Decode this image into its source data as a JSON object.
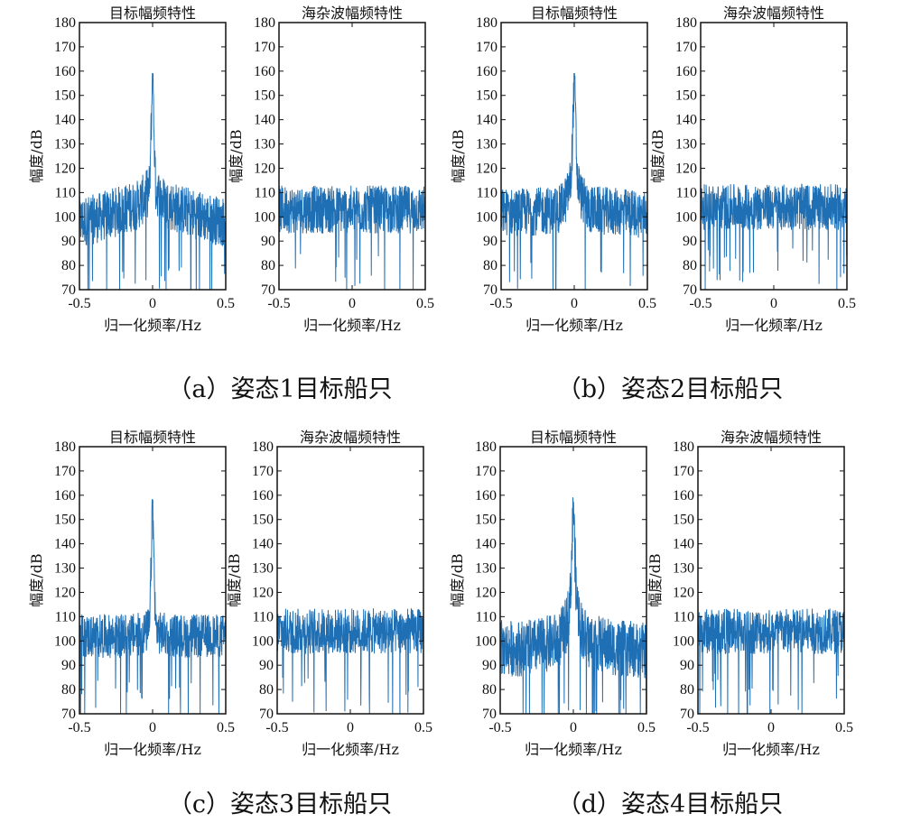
{
  "figure": {
    "captions": [
      "（a）姿态1目标船只",
      "（b）姿态2目标船只",
      "（c）姿态3目标船只",
      "（d）姿态4目标船只"
    ],
    "line_color": "#1f6fb4"
  },
  "chart_data": [
    {
      "type": "line",
      "group": "a",
      "title": "目标幅频特性",
      "xlabel": "归一化频率/Hz",
      "ylabel": "幅度/dB",
      "xlim": [
        -0.5,
        0.5
      ],
      "ylim": [
        70,
        180
      ],
      "xticks": [
        "-0.5",
        "0",
        "0.5"
      ],
      "yticks": [
        "70",
        "80",
        "90",
        "100",
        "110",
        "120",
        "130",
        "140",
        "150",
        "160",
        "170",
        "180"
      ],
      "series": [
        {
          "x": [
            -0.5,
            -0.4,
            -0.3,
            -0.2,
            -0.1,
            -0.05,
            -0.02,
            0,
            0.02,
            0.05,
            0.1,
            0.2,
            0.3,
            0.4,
            0.5
          ],
          "y": [
            98,
            99,
            101,
            103,
            105,
            108,
            112,
            159,
            112,
            108,
            105,
            103,
            101,
            99,
            98
          ],
          "noise_band": [
            85,
            108
          ]
        }
      ]
    },
    {
      "type": "line",
      "group": "a",
      "title": "海杂波幅频特性",
      "xlabel": "归一化频率/Hz",
      "ylabel": "幅度/dB",
      "xlim": [
        -0.5,
        0.5
      ],
      "ylim": [
        70,
        180
      ],
      "xticks": [
        "-0.5",
        "0",
        "0.5"
      ],
      "yticks": [
        "70",
        "80",
        "90",
        "100",
        "110",
        "120",
        "130",
        "140",
        "150",
        "160",
        "170",
        "180"
      ],
      "series": [
        {
          "x": [
            -0.5,
            0,
            0.5
          ],
          "y": [
            103,
            103,
            103
          ],
          "noise_band": [
            90,
            112
          ]
        }
      ]
    },
    {
      "type": "line",
      "group": "b",
      "title": "目标幅频特性",
      "xlabel": "归一化频率/Hz",
      "ylabel": "幅度/dB",
      "xlim": [
        -0.5,
        0.5
      ],
      "ylim": [
        70,
        180
      ],
      "xticks": [
        "-0.5",
        "0",
        "0.5"
      ],
      "yticks": [
        "70",
        "80",
        "90",
        "100",
        "110",
        "120",
        "130",
        "140",
        "150",
        "160",
        "170",
        "180"
      ],
      "series": [
        {
          "x": [
            -0.5,
            -0.3,
            -0.1,
            -0.05,
            -0.02,
            0,
            0.02,
            0.05,
            0.1,
            0.3,
            0.5
          ],
          "y": [
            102,
            102,
            103,
            108,
            116,
            159,
            116,
            108,
            103,
            102,
            101
          ],
          "noise_band": [
            88,
            110
          ]
        }
      ]
    },
    {
      "type": "line",
      "group": "b",
      "title": "海杂波幅频特性",
      "xlabel": "归一化频率/Hz",
      "ylabel": "幅度/dB",
      "xlim": [
        -0.5,
        0.5
      ],
      "ylim": [
        70,
        180
      ],
      "xticks": [
        "-0.5",
        "0",
        "0.5"
      ],
      "yticks": [
        "70",
        "80",
        "90",
        "100",
        "110",
        "120",
        "130",
        "140",
        "150",
        "160",
        "170",
        "180"
      ],
      "series": [
        {
          "x": [
            -0.5,
            0,
            0.5
          ],
          "y": [
            104,
            104,
            104
          ],
          "noise_band": [
            92,
            113
          ]
        }
      ]
    },
    {
      "type": "line",
      "group": "c",
      "title": "目标幅频特性",
      "xlabel": "归一化频率/Hz",
      "ylabel": "幅度/dB",
      "xlim": [
        -0.5,
        0.5
      ],
      "ylim": [
        70,
        180
      ],
      "xticks": [
        "-0.5",
        "0",
        "0.5"
      ],
      "yticks": [
        "70",
        "80",
        "90",
        "100",
        "110",
        "120",
        "130",
        "140",
        "150",
        "160",
        "170",
        "180"
      ],
      "series": [
        {
          "x": [
            -0.5,
            -0.2,
            -0.05,
            -0.02,
            0,
            0.02,
            0.05,
            0.2,
            0.5
          ],
          "y": [
            102,
            102,
            103,
            106,
            158,
            106,
            103,
            102,
            102
          ],
          "noise_band": [
            90,
            110
          ]
        }
      ]
    },
    {
      "type": "line",
      "group": "c",
      "title": "海杂波幅频特性",
      "xlabel": "归一化频率/Hz",
      "ylabel": "幅度/dB",
      "xlim": [
        -0.5,
        0.5
      ],
      "ylim": [
        70,
        180
      ],
      "xticks": [
        "-0.5",
        "0",
        "0.5"
      ],
      "yticks": [
        "70",
        "80",
        "90",
        "100",
        "110",
        "120",
        "130",
        "140",
        "150",
        "160",
        "170",
        "180"
      ],
      "series": [
        {
          "x": [
            -0.5,
            0,
            0.5
          ],
          "y": [
            104,
            104,
            104
          ],
          "noise_band": [
            92,
            113
          ]
        }
      ]
    },
    {
      "type": "line",
      "group": "d",
      "title": "目标幅频特性",
      "xlabel": "归一化频率/Hz",
      "ylabel": "幅度/dB",
      "xlim": [
        -0.5,
        0.5
      ],
      "ylim": [
        70,
        180
      ],
      "xticks": [
        "-0.5",
        "0",
        "0.5"
      ],
      "yticks": [
        "70",
        "80",
        "90",
        "100",
        "110",
        "120",
        "130",
        "140",
        "150",
        "160",
        "170",
        "180"
      ],
      "series": [
        {
          "x": [
            -0.5,
            -0.3,
            -0.1,
            -0.05,
            -0.02,
            0,
            0.02,
            0.05,
            0.1,
            0.3,
            0.5
          ],
          "y": [
            97,
            97,
            100,
            106,
            118,
            157,
            118,
            106,
            100,
            97,
            96
          ],
          "noise_band": [
            82,
            108
          ]
        }
      ]
    },
    {
      "type": "line",
      "group": "d",
      "title": "海杂波幅频特性",
      "xlabel": "归一化频率/Hz",
      "ylabel": "幅度/dB",
      "xlim": [
        -0.5,
        0.5
      ],
      "ylim": [
        70,
        180
      ],
      "xticks": [
        "-0.5",
        "0",
        "0.5"
      ],
      "yticks": [
        "70",
        "80",
        "90",
        "100",
        "110",
        "120",
        "130",
        "140",
        "150",
        "160",
        "170",
        "180"
      ],
      "series": [
        {
          "x": [
            -0.5,
            0,
            0.5
          ],
          "y": [
            104,
            104,
            104
          ],
          "noise_band": [
            92,
            113
          ]
        }
      ]
    }
  ]
}
